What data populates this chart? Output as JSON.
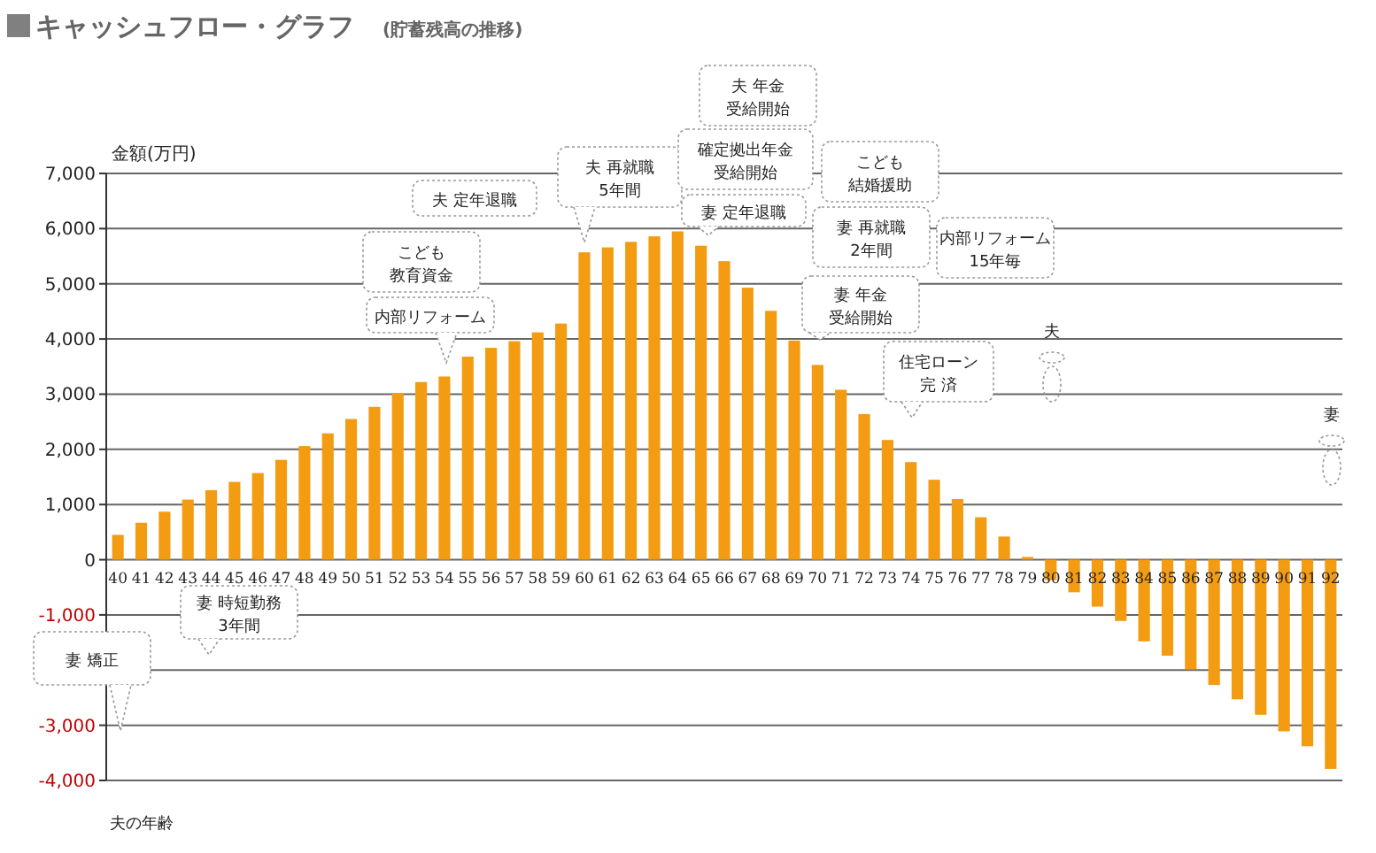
{
  "chart_data": {
    "type": "bar",
    "title": "キャッシュフロー・グラフ",
    "subtitle": "(貯蓄残高の推移)",
    "ylabel": "金額(万円)",
    "xlabel": "夫の年齢",
    "categories": [
      "40",
      "41",
      "42",
      "43",
      "44",
      "45",
      "46",
      "47",
      "48",
      "49",
      "50",
      "51",
      "52",
      "53",
      "54",
      "55",
      "56",
      "57",
      "58",
      "59",
      "60",
      "61",
      "62",
      "63",
      "64",
      "65",
      "66",
      "67",
      "68",
      "69",
      "70",
      "71",
      "72",
      "73",
      "74",
      "75",
      "76",
      "77",
      "78",
      "79",
      "80",
      "81",
      "82",
      "83",
      "84",
      "85",
      "86",
      "87",
      "88",
      "89",
      "90",
      "91",
      "92"
    ],
    "values": [
      450,
      670,
      870,
      1090,
      1260,
      1410,
      1570,
      1810,
      2060,
      2290,
      2550,
      2770,
      3020,
      3220,
      3320,
      3680,
      3840,
      3960,
      4120,
      4280,
      5570,
      5660,
      5760,
      5860,
      5950,
      5690,
      5410,
      4930,
      4510,
      3970,
      3530,
      3080,
      2640,
      2170,
      1770,
      1450,
      1100,
      770,
      420,
      50,
      -370,
      -590,
      -850,
      -1110,
      -1480,
      -1740,
      -1980,
      -2270,
      -2530,
      -2810,
      -3110,
      -3380,
      -3790
    ],
    "color": "#f39c12",
    "ylim": [
      -4000,
      7000
    ],
    "yticks": [
      {
        "value": -4000,
        "label": "-4,000"
      },
      {
        "value": -3000,
        "label": "-3,000"
      },
      {
        "value": -2000,
        "label": null
      },
      {
        "value": -1000,
        "label": "-1,000"
      },
      {
        "value": 0,
        "label": "0"
      },
      {
        "value": 1000,
        "label": "1,000"
      },
      {
        "value": 2000,
        "label": "2,000"
      },
      {
        "value": 3000,
        "label": "3,000"
      },
      {
        "value": 4000,
        "label": "4,000"
      },
      {
        "value": 5000,
        "label": "5,000"
      },
      {
        "value": 6000,
        "label": "6,000"
      },
      {
        "value": 7000,
        "label": "7,000"
      }
    ],
    "grid": "y",
    "annotations": [
      "こども教育資金",
      "内部リフォーム",
      "夫 定年退職",
      "夫 再就職5年間",
      "夫 年金受給開始",
      "確定拠出年金受給開始",
      "妻 定年退職",
      "こども結婚援助",
      "妻 再就職2年間",
      "内部リフォーム15年毎",
      "妻 年金受給開始",
      "住宅ローン完 済",
      "夫",
      "妻",
      "妻 時短勤務3年間",
      "妻 矯正"
    ]
  }
}
